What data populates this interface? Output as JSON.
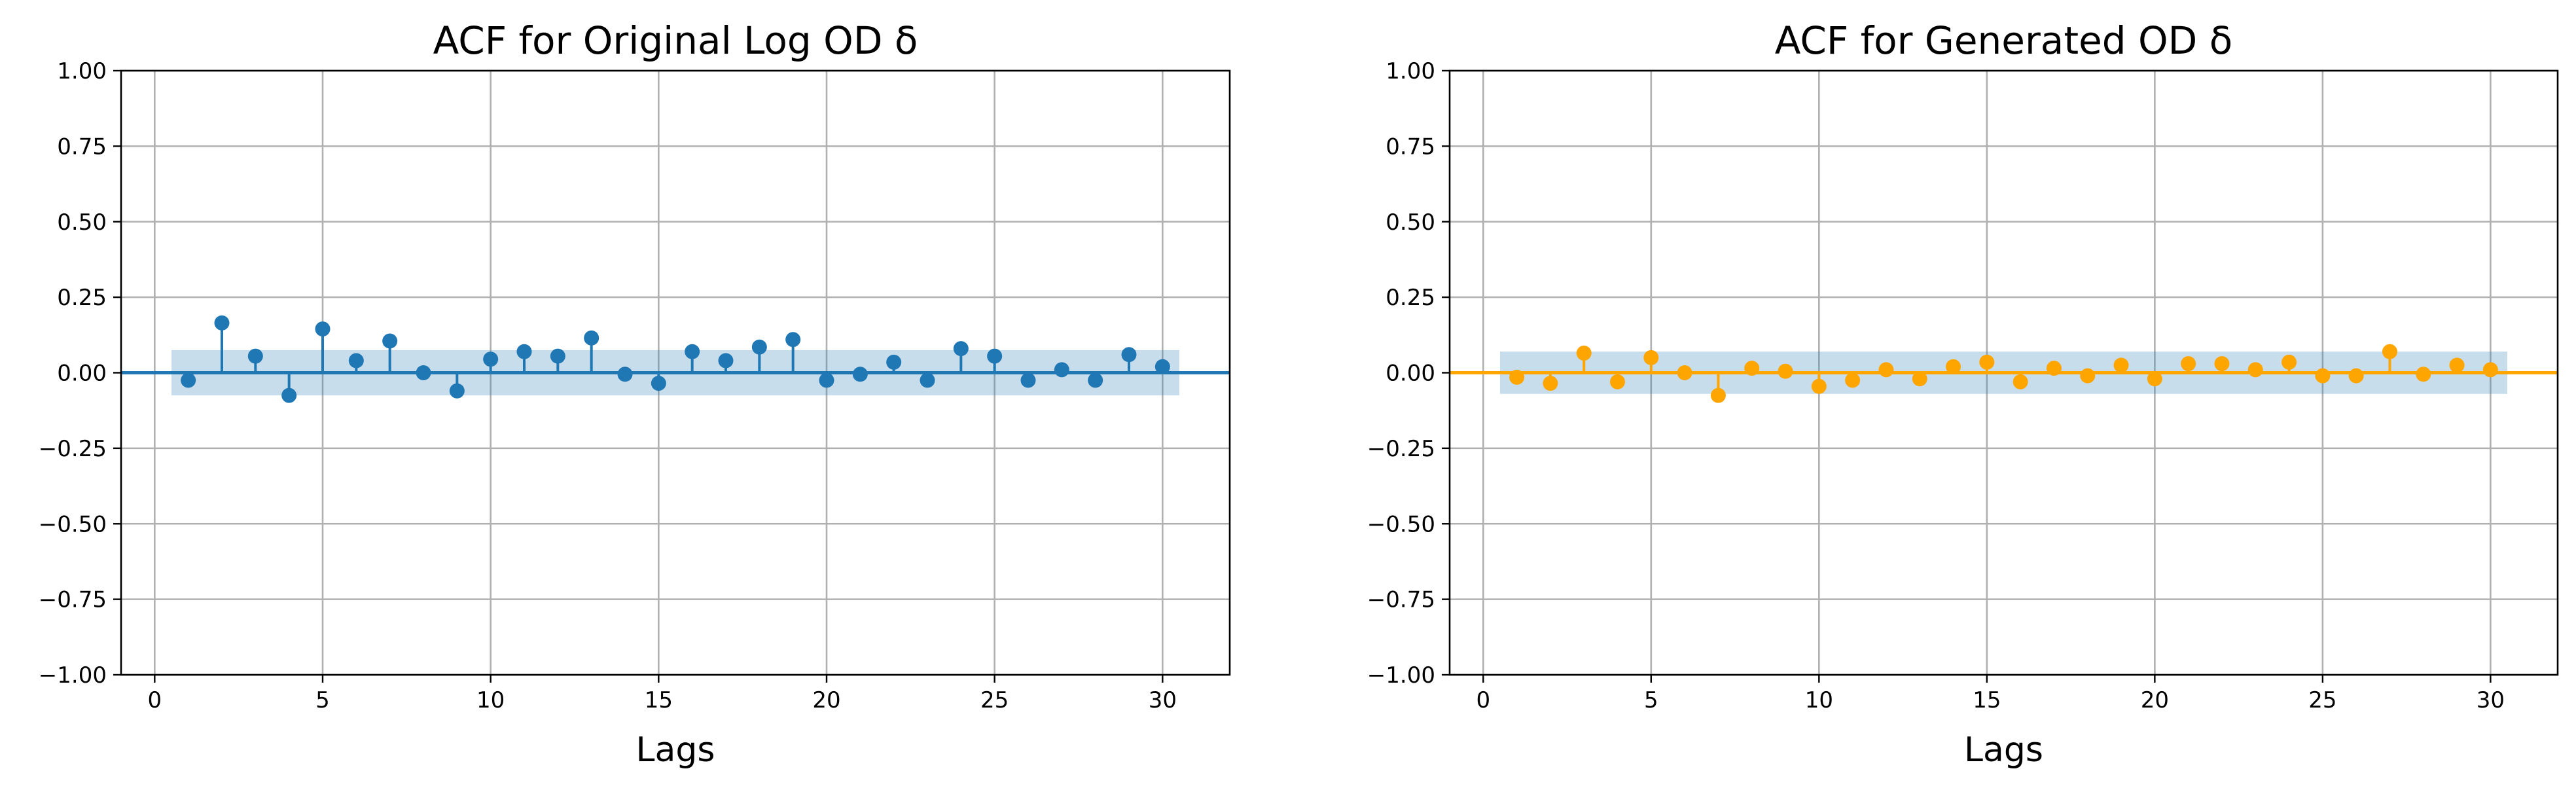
{
  "chart_data": [
    {
      "type": "stem",
      "title": "ACF for Original Log OD δ",
      "xlabel": "Lags",
      "ylabel": "",
      "xlim": [
        -1,
        32
      ],
      "ylim": [
        -1.0,
        1.0
      ],
      "xticks": [
        "0",
        "5",
        "10",
        "15",
        "20",
        "25",
        "30"
      ],
      "yticks": [
        "1.00",
        "0.75",
        "0.50",
        "0.25",
        "0.00",
        "−0.25",
        "−0.50",
        "−0.75",
        "−1.00"
      ],
      "grid": true,
      "color": "#1f77b4",
      "confidence_band": {
        "lag_range": [
          0.5,
          30.5
        ],
        "half_width": 0.075,
        "color": "#1f77b4"
      },
      "x": [
        1,
        2,
        3,
        4,
        5,
        6,
        7,
        8,
        9,
        10,
        11,
        12,
        13,
        14,
        15,
        16,
        17,
        18,
        19,
        20,
        21,
        22,
        23,
        24,
        25,
        26,
        27,
        28,
        29,
        30
      ],
      "values": [
        -0.025,
        0.165,
        0.055,
        -0.075,
        0.145,
        0.04,
        0.105,
        0.0,
        -0.06,
        0.045,
        0.07,
        0.055,
        0.115,
        -0.005,
        -0.035,
        0.07,
        0.04,
        0.085,
        0.11,
        -0.025,
        -0.005,
        0.035,
        -0.025,
        0.08,
        0.055,
        -0.025,
        0.01,
        -0.025,
        0.06,
        0.02
      ]
    },
    {
      "type": "stem",
      "title": "ACF for Generated OD δ",
      "xlabel": "Lags",
      "ylabel": "",
      "xlim": [
        -1,
        32
      ],
      "ylim": [
        -1.0,
        1.0
      ],
      "xticks": [
        "0",
        "5",
        "10",
        "15",
        "20",
        "25",
        "30"
      ],
      "yticks": [
        "1.00",
        "0.75",
        "0.50",
        "0.25",
        "0.00",
        "−0.25",
        "−0.50",
        "−0.75",
        "−1.00"
      ],
      "grid": true,
      "color": "#ffa500",
      "confidence_band": {
        "lag_range": [
          0.5,
          30.5
        ],
        "half_width": 0.07,
        "color": "#1f77b4"
      },
      "x": [
        1,
        2,
        3,
        4,
        5,
        6,
        7,
        8,
        9,
        10,
        11,
        12,
        13,
        14,
        15,
        16,
        17,
        18,
        19,
        20,
        21,
        22,
        23,
        24,
        25,
        26,
        27,
        28,
        29,
        30
      ],
      "values": [
        -0.015,
        -0.035,
        0.065,
        -0.03,
        0.05,
        0.0,
        -0.075,
        0.015,
        0.005,
        -0.045,
        -0.025,
        0.01,
        -0.02,
        0.02,
        0.035,
        -0.03,
        0.015,
        -0.01,
        0.025,
        -0.02,
        0.03,
        0.03,
        0.01,
        0.035,
        -0.01,
        -0.01,
        0.07,
        -0.005,
        0.025,
        0.01
      ]
    }
  ]
}
